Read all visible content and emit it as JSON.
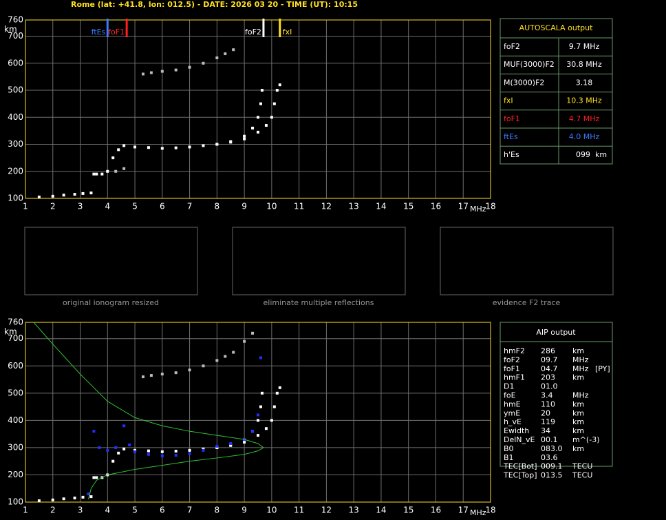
{
  "header": {
    "title": "Rome (lat: +41.8, lon: 012.5) - DATE: 2026 03 20 - TIME (UT): 10:15"
  },
  "chart_data": [
    {
      "type": "scatter",
      "x_label": "MHz",
      "y_label": "km",
      "xlim": [
        1,
        18
      ],
      "xticks": [
        1,
        2,
        3,
        4,
        5,
        6,
        7,
        8,
        9,
        10,
        11,
        12,
        13,
        14,
        15,
        16,
        17,
        18
      ],
      "ylim": [
        100,
        760
      ],
      "yticks": [
        100,
        200,
        300,
        400,
        500,
        600,
        700,
        760
      ],
      "grid": true,
      "markers": [
        {
          "label": "ftEs",
          "x": 4.0,
          "color": "#3a7cff"
        },
        {
          "label": "foF1",
          "x": 4.7,
          "color": "#ff2020"
        },
        {
          "label": "foF2",
          "x": 9.7,
          "color": "#ffffff"
        },
        {
          "label": "fxI",
          "x": 10.3,
          "color": "#ffe020"
        }
      ],
      "series": [
        {
          "color": "#ffffff",
          "style": "dots",
          "x": [
            1.5,
            2,
            2.4,
            2.8,
            3.1,
            3.4,
            3.5,
            3.6,
            3.8,
            4.0,
            4.2,
            4.4,
            4.6,
            5,
            5.5,
            6,
            6.5,
            7,
            7.5,
            8,
            8.5,
            9,
            9.3,
            9.5,
            9.6,
            9.65
          ],
          "values": [
            105,
            108,
            112,
            115,
            118,
            120,
            190,
            190,
            190,
            200,
            250,
            280,
            295,
            290,
            288,
            285,
            287,
            290,
            295,
            300,
            310,
            330,
            360,
            400,
            450,
            500
          ]
        },
        {
          "color": "#ffffff",
          "style": "dots",
          "x": [
            8,
            8.5,
            9,
            9.5,
            9.8,
            10,
            10.1,
            10.2,
            10.3
          ],
          "values": [
            300,
            308,
            320,
            345,
            370,
            400,
            450,
            500,
            520
          ]
        },
        {
          "color": "#bbbbbb",
          "style": "dots",
          "x": [
            4.3,
            4.6,
            5.3,
            5.6,
            6,
            6.5,
            7,
            7.5,
            8,
            8.3,
            8.6
          ],
          "values": [
            200,
            210,
            560,
            565,
            570,
            575,
            585,
            600,
            620,
            635,
            650
          ]
        }
      ]
    },
    {
      "type": "scatter",
      "x_label": "MHz",
      "y_label": "km",
      "xlim": [
        1,
        18
      ],
      "xticks": [
        1,
        2,
        3,
        4,
        5,
        6,
        7,
        8,
        9,
        10,
        11,
        12,
        13,
        14,
        15,
        16,
        17,
        18
      ],
      "ylim": [
        100,
        760
      ],
      "yticks": [
        100,
        200,
        300,
        400,
        500,
        600,
        700,
        760
      ],
      "grid": true,
      "series": [
        {
          "color": "#ffffff",
          "style": "dots",
          "x": [
            1.5,
            2,
            2.4,
            2.8,
            3.1,
            3.4,
            3.5,
            3.6,
            3.8,
            4.0,
            4.2,
            4.4,
            4.6,
            5,
            5.5,
            6,
            6.5,
            7,
            7.5,
            8,
            8.5,
            9,
            9.3,
            9.5,
            9.6,
            9.65
          ],
          "values": [
            105,
            108,
            112,
            115,
            118,
            120,
            190,
            190,
            190,
            200,
            250,
            280,
            295,
            290,
            288,
            285,
            287,
            290,
            295,
            300,
            310,
            330,
            360,
            400,
            450,
            500
          ]
        },
        {
          "color": "#ffffff",
          "style": "dots",
          "x": [
            8,
            8.5,
            9,
            9.5,
            9.8,
            10,
            10.1,
            10.2,
            10.3
          ],
          "values": [
            300,
            308,
            320,
            345,
            370,
            400,
            450,
            500,
            520
          ]
        },
        {
          "color": "#bbbbbb",
          "style": "dots",
          "x": [
            5.3,
            5.6,
            6,
            6.5,
            7,
            7.5,
            8,
            8.3,
            8.6,
            9,
            9.3
          ],
          "values": [
            560,
            565,
            570,
            575,
            585,
            600,
            620,
            635,
            650,
            690,
            720
          ]
        },
        {
          "color": "#2030ff",
          "style": "dots",
          "x": [
            3.3,
            3.5,
            3.7,
            4,
            4.3,
            4.6,
            4.8,
            5,
            5.5,
            6,
            6.5,
            7,
            7.5,
            8,
            8.5,
            9,
            9.3,
            9.5,
            9.6
          ],
          "values": [
            130,
            360,
            300,
            290,
            300,
            380,
            310,
            285,
            275,
            270,
            272,
            278,
            290,
            305,
            315,
            330,
            360,
            420,
            630
          ]
        },
        {
          "color": "#30c030",
          "style": "line",
          "x": [
            3.3,
            3.4,
            3.6,
            4,
            5,
            6,
            7,
            8,
            9,
            9.5,
            9.7,
            9.5,
            9,
            8,
            7,
            6,
            5,
            4,
            3,
            2,
            1.3
          ],
          "values": [
            110,
            150,
            180,
            200,
            220,
            235,
            250,
            262,
            275,
            288,
            300,
            315,
            330,
            345,
            360,
            380,
            410,
            470,
            570,
            680,
            760
          ]
        }
      ]
    }
  ],
  "thumbnails": [
    "original ionogram resized",
    "eliminate multiple reflections",
    "evidence F2 trace"
  ],
  "autoscala": {
    "title": "AUTOSCALA output",
    "rows": [
      [
        "foF2",
        "9.7 MHz"
      ],
      [
        "MUF(3000)F2",
        "30.8 MHz"
      ],
      [
        "M(3000)F2",
        "3.18"
      ],
      [
        "fxI",
        "10.3 MHz"
      ],
      [
        "foF1",
        "4.7 MHz"
      ],
      [
        "ftEs",
        "4.0 MHz"
      ],
      [
        "h'Es",
        "099",
        "km"
      ]
    ],
    "colors": [
      "#ffffff",
      "#ffffff",
      "#ffffff",
      "#ffe020",
      "#ff2020",
      "#3a7cff",
      "#ffffff"
    ]
  },
  "aip": {
    "title": "AIP output",
    "rows": [
      [
        "hmF2",
        "286",
        "km"
      ],
      [
        "foF2",
        "09.7",
        "MHz"
      ],
      [
        "foF1",
        "04.7",
        "MHz",
        "[PY]"
      ],
      [
        "hmF1",
        "203",
        "km"
      ],
      [
        "D1",
        "01.0"
      ],
      [
        "foE",
        "3.4",
        "MHz"
      ],
      [
        "hmE",
        "110",
        "km"
      ],
      [
        "ymE",
        "20",
        "km"
      ],
      [
        "h_vE",
        "119",
        "km"
      ],
      [
        "Ewidth",
        "34",
        "km"
      ],
      [
        "DelN_vE",
        "00.1",
        "m^(-3)"
      ],
      [
        "B0",
        "083.0",
        "km"
      ],
      [
        "B1",
        "03.6"
      ],
      [
        "TEC[Bot]",
        "009.1",
        "TECU"
      ],
      [
        "TEC[Top]",
        "013.5",
        "TECU"
      ]
    ]
  }
}
